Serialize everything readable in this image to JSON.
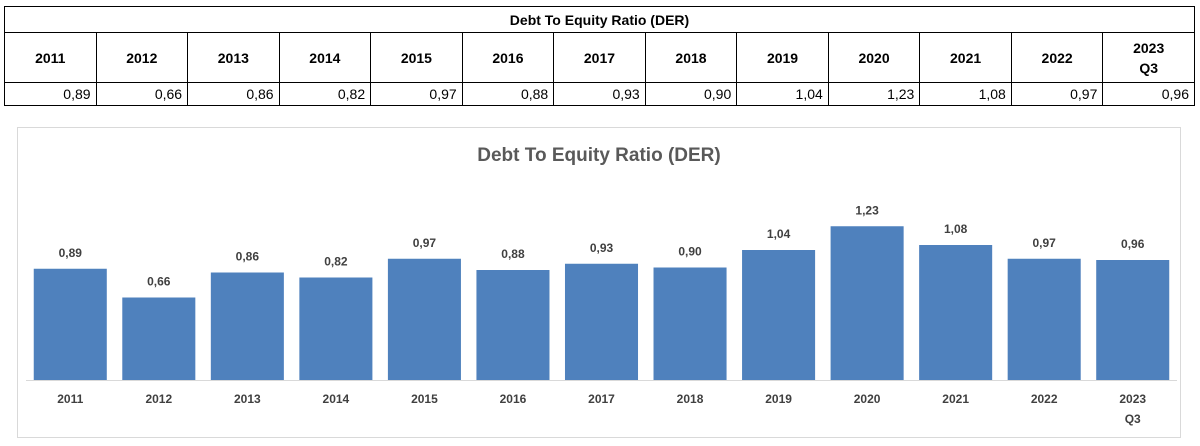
{
  "table": {
    "title": "Debt To Equity Ratio (DER)",
    "years": [
      [
        "2011"
      ],
      [
        "2012"
      ],
      [
        "2013"
      ],
      [
        "2014"
      ],
      [
        "2015"
      ],
      [
        "2016"
      ],
      [
        "2017"
      ],
      [
        "2018"
      ],
      [
        "2019"
      ],
      [
        "2020"
      ],
      [
        "2021"
      ],
      [
        "2022"
      ],
      [
        "2023",
        "Q3"
      ]
    ],
    "values": [
      "0,89",
      "0,66",
      "0,86",
      "0,82",
      "0,97",
      "0,88",
      "0,93",
      "0,90",
      "1,04",
      "1,23",
      "1,08",
      "0,97",
      "0,96"
    ]
  },
  "chart_data": {
    "type": "bar",
    "title": "Debt To Equity Ratio (DER)",
    "categories": [
      [
        "2011"
      ],
      [
        "2012"
      ],
      [
        "2013"
      ],
      [
        "2014"
      ],
      [
        "2015"
      ],
      [
        "2016"
      ],
      [
        "2017"
      ],
      [
        "2018"
      ],
      [
        "2019"
      ],
      [
        "2020"
      ],
      [
        "2021"
      ],
      [
        "2022"
      ],
      [
        "2023",
        "Q3"
      ]
    ],
    "values": [
      0.89,
      0.66,
      0.86,
      0.82,
      0.97,
      0.88,
      0.93,
      0.9,
      1.04,
      1.23,
      1.08,
      0.97,
      0.96
    ],
    "data_labels": [
      "0,89",
      "0,66",
      "0,86",
      "0,82",
      "0,97",
      "0,88",
      "0,93",
      "0,90",
      "1,04",
      "1,23",
      "1,08",
      "0,97",
      "0,96"
    ],
    "xlabel": "",
    "ylabel": "",
    "ylim": [
      0,
      1.4
    ],
    "grid": false,
    "legend": "none",
    "bar_color": "#4f81bd"
  }
}
